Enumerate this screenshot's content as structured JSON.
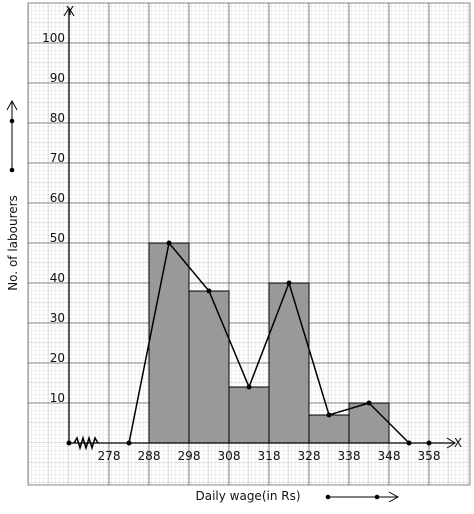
{
  "chart_data": {
    "type": "histogram",
    "x_label": "Daily wage(in Rs)",
    "y_label": "No. of labourers",
    "x_axis_letter": "X",
    "y_axis_letter": "Y",
    "bins": [
      288,
      298,
      308,
      318,
      328,
      338,
      348
    ],
    "values": [
      50,
      38,
      14,
      40,
      7,
      10
    ],
    "color": "#999999",
    "polygon": {
      "x": [
        283,
        293,
        303,
        313,
        323,
        333,
        343,
        353
      ],
      "values": [
        0,
        50,
        38,
        14,
        40,
        7,
        10,
        0
      ],
      "color": "#000000"
    },
    "xlim": [
      257.75,
      368.25
    ],
    "ylim": [
      -10.5,
      110
    ],
    "xticks": [
      278,
      288,
      298,
      308,
      318,
      328,
      338,
      348,
      358
    ],
    "yticks": [
      10,
      20,
      30,
      40,
      50,
      60,
      70,
      80,
      90,
      100
    ],
    "grid": true
  }
}
